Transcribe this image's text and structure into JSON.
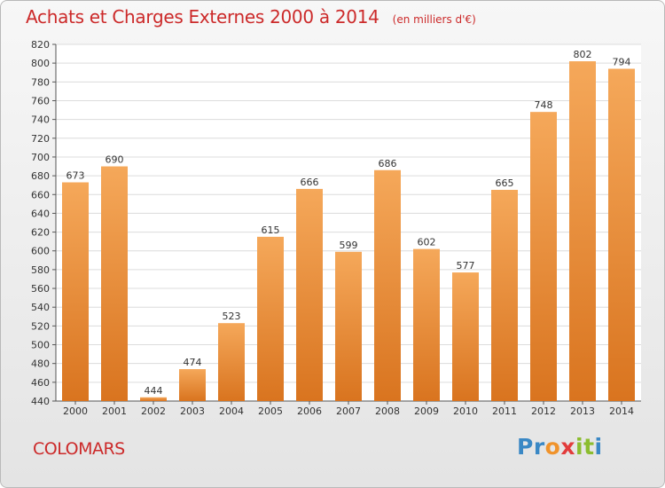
{
  "title": "Achats et Charges Externes 2000 à 2014",
  "subtitle": "(en milliers d'€)",
  "commune": "COLOMARS",
  "logo": {
    "letters": [
      "P",
      "r",
      "o",
      "x",
      "i",
      "t",
      "i"
    ],
    "colors": [
      "#3a88c5",
      "#3a88c5",
      "#f0932b",
      "#e23c3c",
      "#8cbd2f",
      "#8cbd2f",
      "#3a88c5"
    ]
  },
  "colors": {
    "bar_light": "#f5a85a",
    "bar_dark": "#d9741f",
    "title": "#cc2a2a"
  },
  "chart_data": {
    "type": "bar",
    "categories": [
      "2000",
      "2001",
      "2002",
      "2003",
      "2004",
      "2005",
      "2006",
      "2007",
      "2008",
      "2009",
      "2010",
      "2011",
      "2012",
      "2013",
      "2014"
    ],
    "values": [
      673,
      690,
      444,
      474,
      523,
      615,
      666,
      599,
      686,
      602,
      577,
      665,
      748,
      802,
      794
    ],
    "title": "Achats et Charges Externes 2000 à 2014",
    "ylim": [
      440,
      820
    ],
    "yticks": [
      440,
      460,
      480,
      500,
      520,
      540,
      560,
      580,
      600,
      620,
      640,
      660,
      680,
      700,
      720,
      740,
      760,
      780,
      800,
      820
    ],
    "grid": true,
    "data_labels": true
  }
}
